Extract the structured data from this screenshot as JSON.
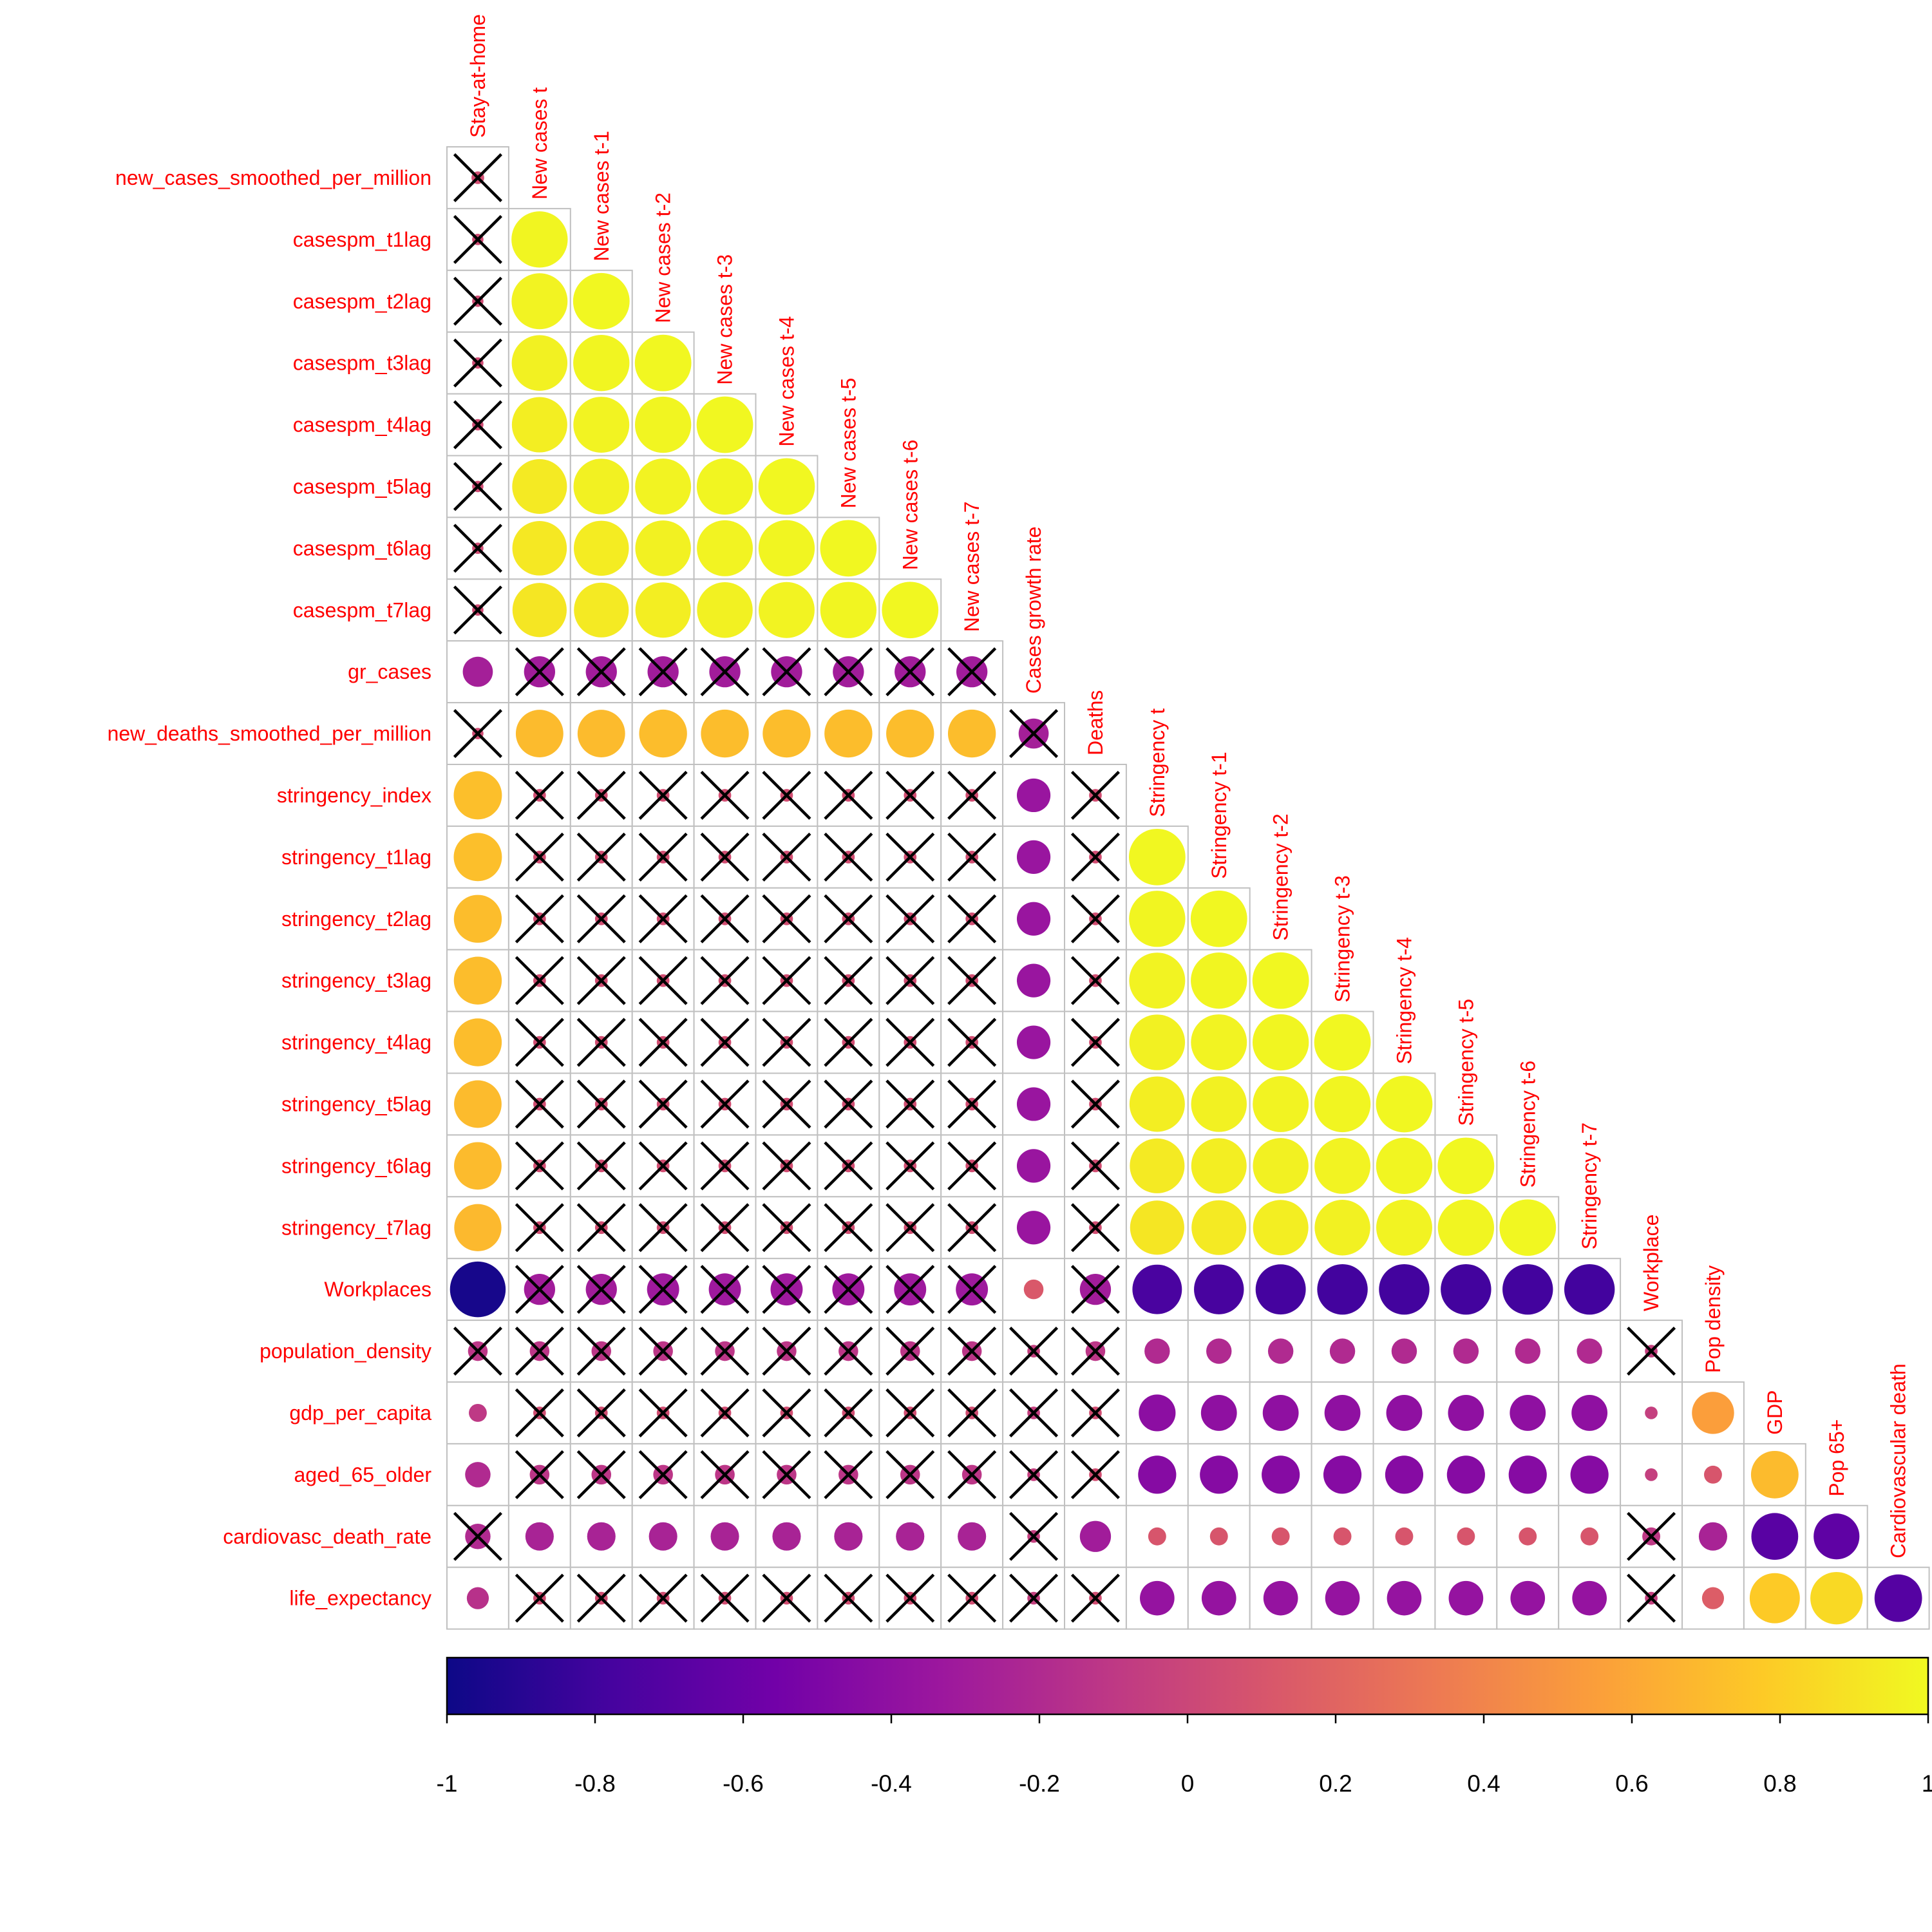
{
  "chart_data": {
    "type": "heatmap",
    "plot_style": "lower-triangular correlation matrix, circles sized and colored by correlation, crosses mark non-significant cells",
    "row_labels": [
      "new_cases_smoothed_per_million",
      "casespm_t1lag",
      "casespm_t2lag",
      "casespm_t3lag",
      "casespm_t4lag",
      "casespm_t5lag",
      "casespm_t6lag",
      "casespm_t7lag",
      "gr_cases",
      "new_deaths_smoothed_per_million",
      "stringency_index",
      "stringency_t1lag",
      "stringency_t2lag",
      "stringency_t3lag",
      "stringency_t4lag",
      "stringency_t5lag",
      "stringency_t6lag",
      "stringency_t7lag",
      "Workplaces",
      "population_density",
      "gdp_per_capita",
      "aged_65_older",
      "cardiovasc_death_rate",
      "life_expectancy"
    ],
    "column_labels": [
      "Stay-at-home",
      "New cases t",
      "New cases t-1",
      "New cases t-2",
      "New cases t-3",
      "New cases t-4",
      "New cases t-5",
      "New cases t-6",
      "New cases t-7",
      "Cases growth rate",
      "Deaths",
      "Stringency t",
      "Stringency t-1",
      "Stringency t-2",
      "Stringency t-3",
      "Stringency t-4",
      "Stringency t-5",
      "Stringency t-6",
      "Stringency t-7",
      "Workplace",
      "Pop density",
      "GDP",
      "Pop 65+",
      "Cardiovascular death"
    ],
    "label_color": "#ff0000",
    "cell_border_color": "#c0c0c0",
    "colorbar": {
      "range": [
        -1,
        1
      ],
      "ticks": [
        "-1",
        "-0.8",
        "-0.6",
        "-0.4",
        "-0.2",
        "0",
        "0.2",
        "0.4",
        "0.6",
        "0.8",
        "1"
      ],
      "colors": [
        "#0d0887",
        "#46039f",
        "#7201a8",
        "#9c179e",
        "#bd3786",
        "#d8576b",
        "#ed7953",
        "#fb9f3a",
        "#fdca26",
        "#f0f921"
      ]
    },
    "values": [
      [
        0.05
      ],
      [
        0.04,
        0.98
      ],
      [
        0.04,
        0.97,
        0.99
      ],
      [
        0.04,
        0.96,
        0.98,
        0.99
      ],
      [
        0.04,
        0.95,
        0.97,
        0.98,
        0.99
      ],
      [
        0.04,
        0.93,
        0.96,
        0.97,
        0.98,
        0.99
      ],
      [
        0.04,
        0.92,
        0.94,
        0.96,
        0.97,
        0.98,
        0.99
      ],
      [
        0.04,
        0.91,
        0.93,
        0.95,
        0.96,
        0.97,
        0.98,
        0.99
      ],
      [
        -0.28,
        -0.3,
        -0.3,
        -0.3,
        -0.3,
        -0.3,
        -0.3,
        -0.3,
        -0.3
      ],
      [
        0.04,
        0.7,
        0.7,
        0.71,
        0.71,
        0.71,
        0.71,
        0.71,
        0.71,
        -0.28
      ],
      [
        0.72,
        0.05,
        0.05,
        0.05,
        0.05,
        0.05,
        0.05,
        0.05,
        0.05,
        -0.35,
        0.05
      ],
      [
        0.72,
        0.05,
        0.05,
        0.05,
        0.05,
        0.05,
        0.05,
        0.05,
        0.05,
        -0.35,
        0.05,
        0.99
      ],
      [
        0.71,
        0.05,
        0.05,
        0.05,
        0.05,
        0.05,
        0.05,
        0.05,
        0.05,
        -0.35,
        0.05,
        0.98,
        0.99
      ],
      [
        0.71,
        0.05,
        0.05,
        0.05,
        0.05,
        0.05,
        0.05,
        0.05,
        0.05,
        -0.35,
        0.05,
        0.97,
        0.98,
        0.99
      ],
      [
        0.71,
        0.05,
        0.05,
        0.05,
        0.05,
        0.05,
        0.05,
        0.05,
        0.05,
        -0.35,
        0.05,
        0.96,
        0.97,
        0.98,
        0.99
      ],
      [
        0.7,
        0.05,
        0.05,
        0.05,
        0.05,
        0.05,
        0.05,
        0.05,
        0.05,
        -0.35,
        0.05,
        0.95,
        0.96,
        0.97,
        0.98,
        0.99
      ],
      [
        0.7,
        0.05,
        0.05,
        0.05,
        0.05,
        0.05,
        0.05,
        0.05,
        0.05,
        -0.35,
        0.05,
        0.93,
        0.95,
        0.96,
        0.97,
        0.98,
        0.99
      ],
      [
        0.69,
        0.05,
        0.05,
        0.05,
        0.05,
        0.05,
        0.05,
        0.05,
        0.05,
        -0.35,
        0.05,
        0.91,
        0.93,
        0.95,
        0.96,
        0.97,
        0.98,
        0.99
      ],
      [
        -0.96,
        -0.3,
        -0.3,
        -0.32,
        -0.32,
        -0.32,
        -0.32,
        -0.32,
        -0.32,
        0.12,
        -0.3,
        -0.76,
        -0.77,
        -0.78,
        -0.79,
        -0.79,
        -0.79,
        -0.79,
        -0.79
      ],
      [
        -0.12,
        -0.12,
        -0.12,
        -0.12,
        -0.12,
        -0.12,
        -0.12,
        -0.12,
        -0.12,
        -0.05,
        -0.12,
        -0.2,
        -0.2,
        -0.2,
        -0.2,
        -0.2,
        -0.2,
        -0.2,
        -0.2,
        -0.05
      ],
      [
        -0.1,
        0.05,
        0.05,
        0.05,
        0.05,
        0.05,
        0.05,
        0.05,
        0.05,
        -0.05,
        0.05,
        -0.42,
        -0.4,
        -0.4,
        -0.4,
        -0.4,
        -0.4,
        -0.4,
        -0.4,
        -0.05,
        0.55
      ],
      [
        -0.2,
        -0.12,
        -0.12,
        -0.12,
        -0.12,
        -0.12,
        -0.12,
        -0.12,
        -0.12,
        -0.05,
        0.05,
        -0.45,
        -0.45,
        -0.45,
        -0.45,
        -0.45,
        -0.45,
        -0.45,
        -0.45,
        -0.05,
        0.1,
        0.7
      ],
      [
        -0.2,
        -0.25,
        -0.25,
        -0.25,
        -0.25,
        -0.25,
        -0.25,
        -0.25,
        -0.25,
        -0.05,
        -0.3,
        0.1,
        0.1,
        0.1,
        0.1,
        0.1,
        0.1,
        0.1,
        0.1,
        -0.1,
        -0.25,
        -0.68,
        -0.65
      ],
      [
        -0.15,
        0.05,
        0.05,
        0.05,
        0.05,
        0.05,
        0.05,
        0.05,
        0.05,
        -0.05,
        0.05,
        -0.37,
        -0.37,
        -0.37,
        -0.37,
        -0.37,
        -0.37,
        -0.37,
        -0.37,
        -0.05,
        0.15,
        0.78,
        0.85,
        -0.7
      ]
    ],
    "insignificant": [
      [
        1
      ],
      [
        1,
        0
      ],
      [
        1,
        0,
        0
      ],
      [
        1,
        0,
        0,
        0
      ],
      [
        1,
        0,
        0,
        0,
        0
      ],
      [
        1,
        0,
        0,
        0,
        0,
        0
      ],
      [
        1,
        0,
        0,
        0,
        0,
        0,
        0
      ],
      [
        1,
        0,
        0,
        0,
        0,
        0,
        0,
        0
      ],
      [
        0,
        1,
        1,
        1,
        1,
        1,
        1,
        1,
        1
      ],
      [
        1,
        0,
        0,
        0,
        0,
        0,
        0,
        0,
        0,
        1
      ],
      [
        0,
        1,
        1,
        1,
        1,
        1,
        1,
        1,
        1,
        0,
        1
      ],
      [
        0,
        1,
        1,
        1,
        1,
        1,
        1,
        1,
        1,
        0,
        1,
        0
      ],
      [
        0,
        1,
        1,
        1,
        1,
        1,
        1,
        1,
        1,
        0,
        1,
        0,
        0
      ],
      [
        0,
        1,
        1,
        1,
        1,
        1,
        1,
        1,
        1,
        0,
        1,
        0,
        0,
        0
      ],
      [
        0,
        1,
        1,
        1,
        1,
        1,
        1,
        1,
        1,
        0,
        1,
        0,
        0,
        0,
        0
      ],
      [
        0,
        1,
        1,
        1,
        1,
        1,
        1,
        1,
        1,
        0,
        1,
        0,
        0,
        0,
        0,
        0
      ],
      [
        0,
        1,
        1,
        1,
        1,
        1,
        1,
        1,
        1,
        0,
        1,
        0,
        0,
        0,
        0,
        0,
        0
      ],
      [
        0,
        1,
        1,
        1,
        1,
        1,
        1,
        1,
        1,
        0,
        1,
        0,
        0,
        0,
        0,
        0,
        0,
        0
      ],
      [
        0,
        1,
        1,
        1,
        1,
        1,
        1,
        1,
        1,
        0,
        1,
        0,
        0,
        0,
        0,
        0,
        0,
        0,
        0
      ],
      [
        1,
        1,
        1,
        1,
        1,
        1,
        1,
        1,
        1,
        1,
        1,
        0,
        0,
        0,
        0,
        0,
        0,
        0,
        0,
        1
      ],
      [
        0,
        1,
        1,
        1,
        1,
        1,
        1,
        1,
        1,
        1,
        1,
        0,
        0,
        0,
        0,
        0,
        0,
        0,
        0,
        0,
        0
      ],
      [
        0,
        1,
        1,
        1,
        1,
        1,
        1,
        1,
        1,
        1,
        1,
        0,
        0,
        0,
        0,
        0,
        0,
        0,
        0,
        0,
        0,
        0
      ],
      [
        1,
        0,
        0,
        0,
        0,
        0,
        0,
        0,
        0,
        1,
        0,
        0,
        0,
        0,
        0,
        0,
        0,
        0,
        0,
        1,
        0,
        0,
        0
      ],
      [
        0,
        1,
        1,
        1,
        1,
        1,
        1,
        1,
        1,
        1,
        1,
        0,
        0,
        0,
        0,
        0,
        0,
        0,
        0,
        1,
        0,
        0,
        0,
        0
      ]
    ]
  }
}
